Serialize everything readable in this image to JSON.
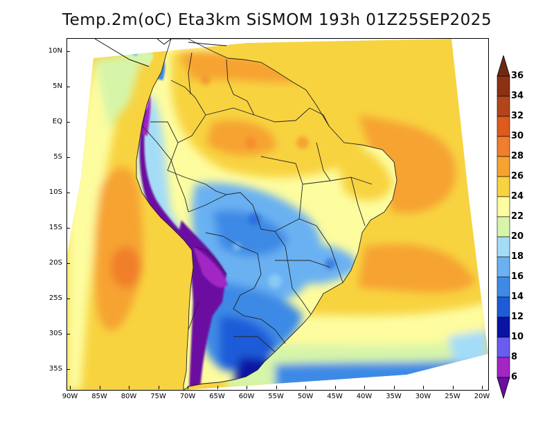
{
  "title": "Temp.2m(oC) Eta3km SiSMOM 193h 01Z25SEP2025",
  "axes": {
    "lat_labels": [
      "10N",
      "5N",
      "EQ",
      "5S",
      "10S",
      "15S",
      "20S",
      "25S",
      "30S",
      "35S"
    ],
    "lon_labels": [
      "90W",
      "85W",
      "80W",
      "75W",
      "70W",
      "65W",
      "60W",
      "55W",
      "50W",
      "45W",
      "40W",
      "35W",
      "30W",
      "25W",
      "20W"
    ]
  },
  "map": {
    "type": "filled-contour",
    "variable": "2 m temperature",
    "units": "oC",
    "lon_range": [
      -90.5,
      -20
    ],
    "lat_range": [
      -38,
      12
    ]
  },
  "colorbar": {
    "levels": [
      "6",
      "8",
      "10",
      "12",
      "14",
      "16",
      "18",
      "20",
      "22",
      "24",
      "26",
      "28",
      "30",
      "32",
      "34",
      "36"
    ],
    "colors": [
      "#6a0fa0",
      "#a226c3",
      "#6a5cf0",
      "#0b13a3",
      "#1d5bd8",
      "#3e8ae6",
      "#6ab1f2",
      "#a4dcf8",
      "#d6f5a9",
      "#fdfc9f",
      "#f8d340",
      "#f6a331",
      "#f17e2c",
      "#de5b1c",
      "#b3451b",
      "#8c3114",
      "#6e2a10"
    ]
  },
  "colors": {
    "ocean_warm": "#f8d340",
    "ocean_hot": "#f6a331",
    "ocean_mild": "#fdfc9f",
    "cold_patagonia": "#3e8ae6",
    "andes": "#6a0fa0",
    "boundary": "#222222"
  }
}
